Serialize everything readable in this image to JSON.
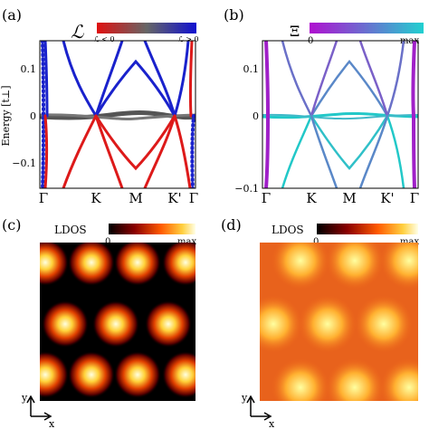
{
  "panels": {
    "a": {
      "label": "(a)",
      "colorbar_symbol": "ℒ",
      "colorbar_left_label": "ℒ < 0",
      "colorbar_right_label": "ℒ > 0",
      "colors": {
        "negative": "#dd1a1a",
        "zero": "#666666",
        "positive": "#1a22cc"
      }
    },
    "b": {
      "label": "(b)",
      "colorbar_symbol": "Ξ",
      "colorbar_min": "0",
      "colorbar_max": "max",
      "colors": {
        "zero": "#a020c8",
        "max": "#22cccc"
      }
    },
    "c": {
      "label": "(c)",
      "colorbar_title": "LDOS",
      "colorbar_min": "0",
      "colorbar_max": "max"
    },
    "d": {
      "label": "(d)",
      "colorbar_title": "LDOS",
      "colorbar_min": "0",
      "colorbar_max": "max"
    }
  },
  "band_plot": {
    "ylabel": "Energy [t⊥]",
    "yticks": [
      "0.1",
      "0",
      "−0.1"
    ],
    "xticks": [
      "Γ",
      "K",
      "M",
      "K'",
      "Γ"
    ]
  },
  "axes_indicator": {
    "x": "x",
    "y": "y"
  },
  "chart_data": [
    {
      "type": "line",
      "panel": "a",
      "xlabel": "",
      "ylabel": "Energy [t⊥]",
      "ylim": [
        -0.1,
        0.15
      ],
      "categories": [
        "Γ",
        "K",
        "M",
        "K'",
        "Γ"
      ],
      "series": [
        {
          "color_by": "ℒ > 0",
          "x": [
            0,
            0.25,
            0.375,
            0.5,
            0.625,
            0.75,
            1
          ],
          "y": [
            0.15,
            0.0,
            0.05,
            0.1,
            0.05,
            0.0,
            0.15
          ]
        },
        {
          "color_by": "ℒ < 0",
          "x": [
            0,
            0.25,
            0.375,
            0.5,
            0.625,
            0.75,
            1
          ],
          "y": [
            -0.1,
            0.0,
            -0.05,
            -0.1,
            -0.05,
            0.0,
            -0.1
          ]
        },
        {
          "color_by": "ℒ = 0",
          "x": [
            0,
            0.25,
            0.5,
            0.75,
            1
          ],
          "y": [
            0.0,
            0.0,
            0.0,
            0.0,
            0.0
          ]
        }
      ]
    },
    {
      "type": "line",
      "panel": "b",
      "xlabel": "",
      "ylabel": "",
      "ylim": [
        -0.1,
        0.15
      ],
      "categories": [
        "Γ",
        "K",
        "M",
        "K'",
        "Γ"
      ]
    },
    {
      "type": "heatmap",
      "panel": "c",
      "title": "LDOS",
      "pattern": "triangular lattice of bright spots on dark background",
      "colorscale": [
        "#000000",
        "#990000",
        "#ff6600",
        "#ffff99",
        "#ffffff"
      ]
    },
    {
      "type": "heatmap",
      "panel": "d",
      "title": "LDOS",
      "pattern": "honeycomb lattice with bright hexagonal centers on orange background",
      "colorscale": [
        "#000000",
        "#990000",
        "#ff6600",
        "#ffff99",
        "#ffffff"
      ]
    }
  ]
}
